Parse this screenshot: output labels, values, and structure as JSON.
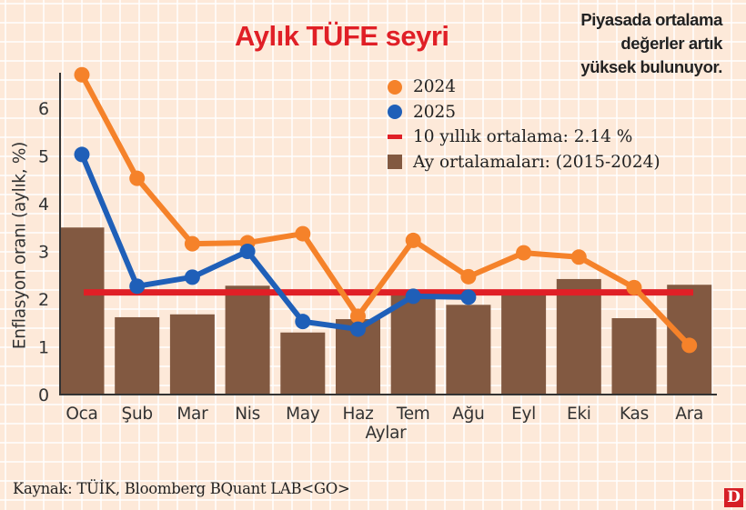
{
  "header": {
    "title": "Aylık TÜFE seyri",
    "subtitle_lines": [
      "Piyasada ortalama",
      "değerler artık",
      "yüksek bulunuyor."
    ]
  },
  "legend": {
    "items": [
      {
        "label": "2024",
        "shape": "circle",
        "color": "#f5822a"
      },
      {
        "label": "2025",
        "shape": "circle",
        "color": "#1f5fb8"
      },
      {
        "label": "10 yıllık ortalama: 2.14 %",
        "shape": "line",
        "color": "#e01f26"
      },
      {
        "label": "Ay ortalamaları: (2015-2024)",
        "shape": "square",
        "color": "#825941"
      }
    ]
  },
  "footer": {
    "source": "Kaynak: TÜİK, Bloomberg BQuant LAB<GO>",
    "logo": "D"
  },
  "colors": {
    "series_2024": "#f5822a",
    "series_2025": "#1f5fb8",
    "avg_line": "#e01f26",
    "bars": "#825941",
    "axis": "#333333",
    "background": "#fde9d9"
  },
  "chart_data": {
    "type": "bar",
    "title": "Aylık TÜFE seyri",
    "subtitle": "Piyasada ortalama değerler artık yüksek bulunuyor.",
    "xlabel": "Aylar",
    "ylabel": "Enflasyon oranı (aylık, %)",
    "ylim": [
      0,
      6.8
    ],
    "yticks": [
      0,
      1,
      2,
      3,
      4,
      5,
      6
    ],
    "grid": true,
    "legend_position": "upper right",
    "categories": [
      "Oca",
      "Şub",
      "Mar",
      "Nis",
      "May",
      "Haz",
      "Tem",
      "Ağu",
      "Eyl",
      "Eki",
      "Kas",
      "Ara"
    ],
    "series": [
      {
        "name": "Ay ortalamaları: (2015-2024)",
        "type": "bar",
        "values": [
          3.5,
          1.62,
          1.68,
          2.28,
          1.3,
          1.58,
          2.12,
          1.88,
          2.2,
          2.42,
          1.6,
          2.3
        ]
      },
      {
        "name": "2024",
        "type": "line",
        "values": [
          6.7,
          4.53,
          3.16,
          3.18,
          3.37,
          1.64,
          3.23,
          2.47,
          2.97,
          2.88,
          2.24,
          1.03
        ]
      },
      {
        "name": "2025",
        "type": "line",
        "values": [
          5.03,
          2.27,
          2.46,
          3.0,
          1.53,
          1.37,
          2.06,
          2.04,
          null,
          null,
          null,
          null
        ]
      },
      {
        "name": "10 yıllık ortalama: 2.14 %",
        "type": "hline",
        "value": 2.14
      }
    ]
  }
}
